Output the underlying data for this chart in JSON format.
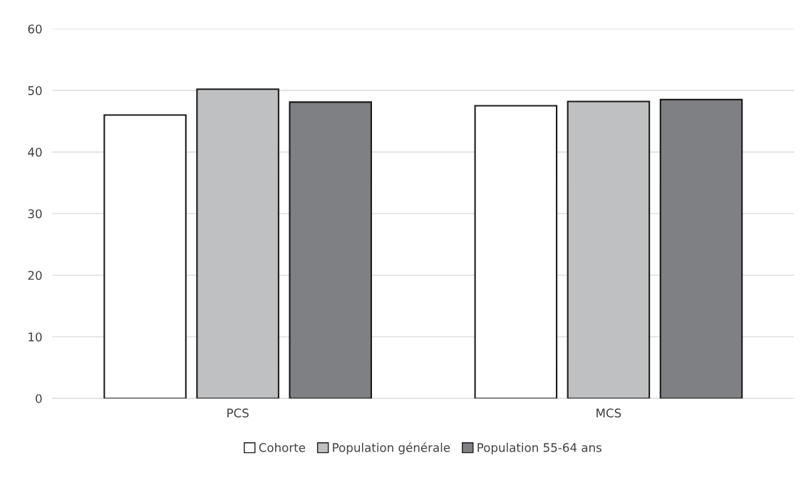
{
  "chart_data": {
    "type": "bar",
    "categories": [
      "PCS",
      "MCS"
    ],
    "series": [
      {
        "name": "Cohorte",
        "color": "#ffffff",
        "values": [
          46.0,
          47.5
        ]
      },
      {
        "name": "Population générale",
        "color": "#bfc0c2",
        "values": [
          50.2,
          48.2
        ]
      },
      {
        "name": "Population 55-64 ans",
        "color": "#7f8084",
        "values": [
          48.1,
          48.5
        ]
      }
    ],
    "ylim": [
      0,
      60
    ],
    "yticks": [
      0,
      10,
      20,
      30,
      40,
      50,
      60
    ],
    "grid": "y",
    "legend": "bottom"
  }
}
